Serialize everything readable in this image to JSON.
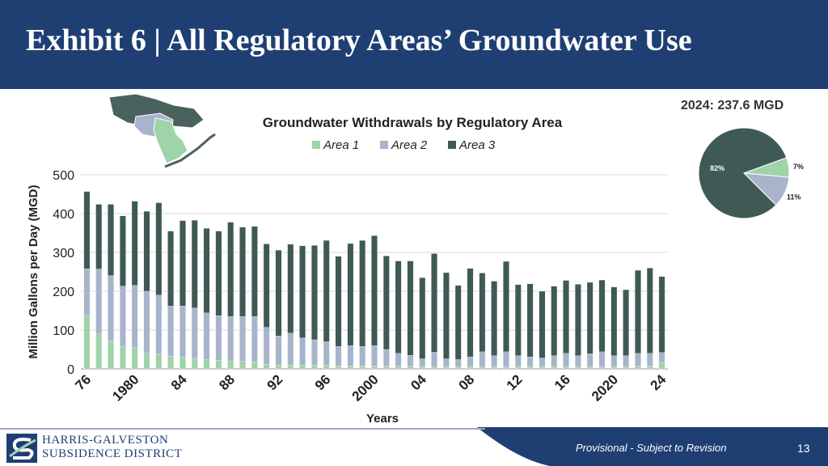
{
  "slide": {
    "title": "Exhibit 6 | All Regulatory Areas’ Groundwater Use",
    "page_number": "13",
    "footer_note": "Provisional - Subject to Revision",
    "org_line1": "HARRIS-GALVESTON",
    "org_line2": "SUBSIDENCE DISTRICT"
  },
  "colors": {
    "header": "#1f3f73",
    "area1": "#9fd3a8",
    "area2": "#a8b3cc",
    "area3": "#3f5a55",
    "gridline": "#d9d9d9"
  },
  "chart_data": [
    {
      "type": "bar",
      "stacked": true,
      "title": "Groundwater Withdrawals by Regulatory Area",
      "xlabel": "Years",
      "ylabel": "Million Gallons per Day (MGD)",
      "ylim": [
        0,
        500
      ],
      "yticks": [
        0,
        100,
        200,
        300,
        400,
        500
      ],
      "grid": true,
      "legend_position": "top",
      "categories": [
        "1976",
        "1977",
        "1978",
        "1979",
        "1980",
        "1981",
        "1982",
        "1983",
        "1984",
        "1985",
        "1986",
        "1987",
        "1988",
        "1989",
        "1990",
        "1991",
        "1992",
        "1993",
        "1994",
        "1995",
        "1996",
        "1997",
        "1998",
        "1999",
        "2000",
        "2001",
        "2002",
        "2003",
        "2004",
        "2005",
        "2006",
        "2007",
        "2008",
        "2009",
        "2010",
        "2011",
        "2012",
        "2013",
        "2014",
        "2015",
        "2016",
        "2017",
        "2018",
        "2019",
        "2020",
        "2021",
        "2022",
        "2023",
        "2024"
      ],
      "tick_labels": [
        {
          "category": "1976",
          "label": "76"
        },
        {
          "category": "1980",
          "label": "1980"
        },
        {
          "category": "1984",
          "label": "84"
        },
        {
          "category": "1988",
          "label": "88"
        },
        {
          "category": "1992",
          "label": "92"
        },
        {
          "category": "1996",
          "label": "96"
        },
        {
          "category": "2000",
          "label": "2000"
        },
        {
          "category": "2004",
          "label": "04"
        },
        {
          "category": "2008",
          "label": "08"
        },
        {
          "category": "2012",
          "label": "12"
        },
        {
          "category": "2016",
          "label": "16"
        },
        {
          "category": "2020",
          "label": "2020"
        },
        {
          "category": "2024",
          "label": "24"
        }
      ],
      "series": [
        {
          "name": "Area 1",
          "values": [
            138,
            90,
            72,
            58,
            55,
            40,
            38,
            32,
            30,
            27,
            24,
            22,
            20,
            20,
            18,
            12,
            10,
            10,
            10,
            10,
            10,
            8,
            8,
            8,
            8,
            8,
            7,
            7,
            6,
            6,
            6,
            6,
            6,
            6,
            6,
            6,
            6,
            6,
            6,
            6,
            6,
            6,
            6,
            6,
            6,
            6,
            8,
            8,
            16
          ]
        },
        {
          "name": "Area 2",
          "values": [
            120,
            167,
            168,
            155,
            160,
            160,
            152,
            130,
            132,
            130,
            120,
            115,
            115,
            115,
            117,
            95,
            75,
            82,
            70,
            65,
            60,
            50,
            52,
            50,
            52,
            42,
            33,
            28,
            20,
            37,
            20,
            18,
            25,
            38,
            28,
            38,
            28,
            25,
            22,
            28,
            34,
            28,
            33,
            38,
            28,
            28,
            32,
            32,
            26
          ]
        },
        {
          "name": "Area 3",
          "values": [
            199,
            167,
            184,
            181,
            217,
            206,
            238,
            193,
            220,
            226,
            218,
            218,
            243,
            230,
            232,
            215,
            221,
            229,
            237,
            243,
            261,
            232,
            263,
            273,
            283,
            241,
            238,
            243,
            209,
            254,
            222,
            191,
            228,
            203,
            192,
            233,
            183,
            188,
            172,
            179,
            188,
            184,
            184,
            185,
            177,
            170,
            214,
            220,
            196
          ]
        }
      ]
    },
    {
      "type": "pie",
      "title": "2024: 237.6 MGD",
      "slices": [
        {
          "name": "Area 1",
          "value": 7,
          "label": "7%"
        },
        {
          "name": "Area 2",
          "value": 11,
          "label": "11%"
        },
        {
          "name": "Area 3",
          "value": 82,
          "label": "82%"
        }
      ]
    }
  ]
}
